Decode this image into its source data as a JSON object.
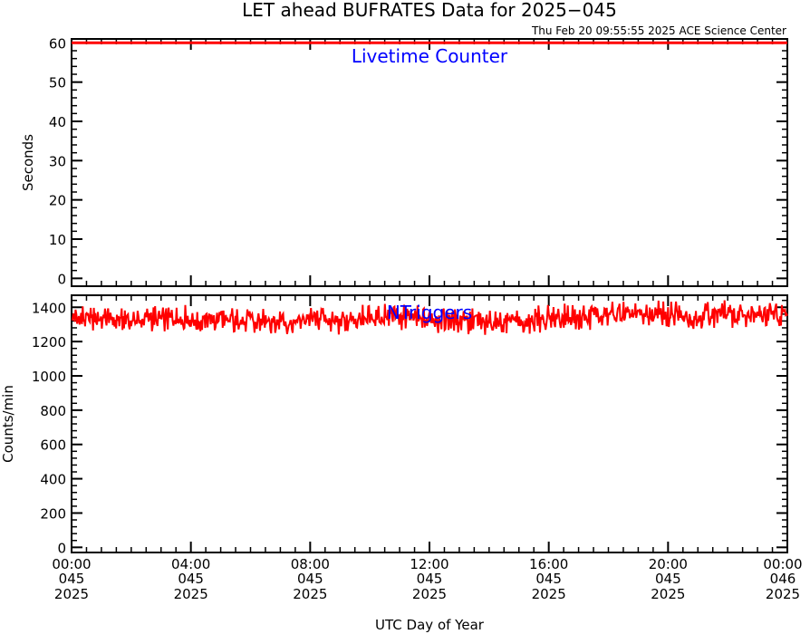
{
  "title": "LET ahead BUFRATES Data for 2025−045",
  "timestamp": "Thu Feb 20 09:55:55 2025 ACE Science Center",
  "xlabel": "UTC Day of Year",
  "chart_data": [
    {
      "type": "line",
      "panel": "top",
      "annotation": "Livetime Counter",
      "ylabel": "Seconds",
      "ylim": [
        -2,
        61
      ],
      "yticks": [
        0,
        10,
        20,
        30,
        40,
        50,
        60
      ],
      "xlim": [
        0,
        24
      ],
      "series_color": "#ff0000",
      "series": [
        {
          "x": [
            0,
            24
          ],
          "values": [
            60,
            60
          ]
        }
      ]
    },
    {
      "type": "line",
      "panel": "bottom",
      "annotation": "NTriggers",
      "ylabel": "Counts/min",
      "ylim": [
        -30,
        1470
      ],
      "yticks": [
        0,
        200,
        400,
        600,
        800,
        1000,
        1200,
        1400
      ],
      "xlim": [
        0,
        24
      ],
      "series_color": "#ff0000",
      "series": [
        {
          "x": [
            0,
            1,
            2,
            3,
            4,
            5,
            6,
            7,
            8,
            9,
            10,
            11,
            12,
            13,
            14,
            15,
            16,
            17,
            18,
            19,
            20,
            21,
            22,
            23,
            24
          ],
          "values": [
            1335,
            1340,
            1320,
            1330,
            1330,
            1325,
            1320,
            1315,
            1325,
            1320,
            1335,
            1340,
            1325,
            1320,
            1310,
            1315,
            1330,
            1345,
            1355,
            1360,
            1355,
            1345,
            1365,
            1360,
            1350
          ],
          "noise_amplitude": 55
        }
      ]
    }
  ],
  "x_ticks": [
    {
      "time": "00:00",
      "day": "045",
      "year": "2025",
      "x": 0
    },
    {
      "time": "04:00",
      "day": "045",
      "year": "2025",
      "x": 4
    },
    {
      "time": "08:00",
      "day": "045",
      "year": "2025",
      "x": 8
    },
    {
      "time": "12:00",
      "day": "045",
      "year": "2025",
      "x": 12
    },
    {
      "time": "16:00",
      "day": "045",
      "year": "2025",
      "x": 16
    },
    {
      "time": "20:00",
      "day": "045",
      "year": "2025",
      "x": 20
    },
    {
      "time": "00:00",
      "day": "046",
      "year": "2025",
      "x": 24
    }
  ]
}
